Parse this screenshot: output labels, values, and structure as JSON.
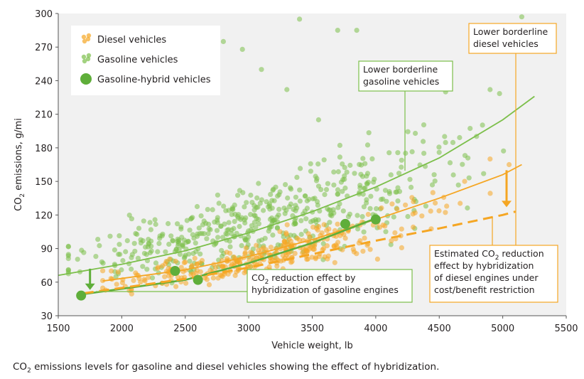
{
  "chart_data": {
    "type": "scatter",
    "xlabel": "Vehicle weight, lb",
    "ylabel": "CO2 emissions, g/mi",
    "xlim": [
      1500,
      5500
    ],
    "ylim": [
      30,
      300
    ],
    "x_ticks": [
      1500,
      2000,
      2500,
      3000,
      3500,
      4000,
      4500,
      5000,
      5500
    ],
    "y_ticks": [
      30,
      60,
      90,
      120,
      150,
      180,
      210,
      240,
      270,
      300
    ],
    "grid": false,
    "legend_position": "top-left",
    "legend": [
      {
        "label": "Diesel vehicles",
        "color": "#f5a623",
        "marker": "small-dot"
      },
      {
        "label": "Gasoline vehicles",
        "color": "#7cbf4a",
        "marker": "small-dot"
      },
      {
        "label": "Gasoline-hybrid vehicles",
        "color": "#5fae3a",
        "marker": "large-dot"
      }
    ],
    "series": [
      {
        "name": "Gasoline-hybrid vehicles",
        "x": [
          1680,
          2420,
          2600,
          3760,
          4000
        ],
        "y": [
          48,
          70,
          62,
          112,
          116
        ]
      }
    ],
    "scatter_clouds": [
      {
        "name": "Gasoline vehicles",
        "color": "#7cbf4a",
        "band": {
          "x": [
            1580,
            5300
          ],
          "y_center": [
            82,
            205
          ],
          "spread": [
            18,
            45
          ]
        },
        "outliers": [
          [
            2800,
            275
          ],
          [
            2950,
            268
          ],
          [
            3100,
            250
          ],
          [
            3400,
            295
          ],
          [
            3700,
            285
          ],
          [
            3850,
            285
          ],
          [
            4550,
            230
          ],
          [
            4900,
            232
          ],
          [
            5150,
            297
          ],
          [
            3300,
            232
          ],
          [
            2700,
            270
          ],
          [
            3550,
            205
          ]
        ]
      },
      {
        "name": "Diesel vehicles",
        "color": "#f5a623",
        "band": {
          "x": [
            1850,
            5100
          ],
          "y_center": [
            62,
            150
          ],
          "spread": [
            8,
            22
          ]
        },
        "outliers": [
          [
            4900,
            170
          ],
          [
            5050,
            165
          ],
          [
            4450,
            140
          ],
          [
            4700,
            150
          ]
        ]
      }
    ],
    "curves": [
      {
        "name": "Lower borderline gasoline vehicles",
        "color": "#7cbf4a",
        "style": "solid",
        "x": [
          1500,
          2000,
          2500,
          3000,
          3500,
          4000,
          4500,
          5000,
          5250
        ],
        "y": [
          66,
          76,
          88,
          104,
          123,
          145,
          171,
          205,
          226
        ]
      },
      {
        "name": "Lower borderline diesel vehicles",
        "color": "#f5a623",
        "style": "solid",
        "x": [
          1850,
          2500,
          3000,
          3500,
          4000,
          4500,
          5000,
          5150
        ],
        "y": [
          61,
          71,
          83,
          98,
          116,
          135,
          156,
          165
        ]
      },
      {
        "name": "Gasoline hybrid trend",
        "color": "#5fae3a",
        "style": "solid",
        "x": [
          1680,
          2000,
          2500,
          3000,
          3500,
          4000
        ],
        "y": [
          49,
          54,
          62,
          77,
          95,
          117
        ]
      },
      {
        "name": "Estimated diesel hybrid",
        "color": "#f5a623",
        "style": "dashed",
        "x": [
          1700,
          2500,
          3000,
          3500,
          4000,
          4500,
          5000,
          5100
        ],
        "y": [
          50,
          63,
          73,
          85,
          97,
          108,
          120,
          123
        ]
      }
    ],
    "arrows": [
      {
        "color": "#5fae3a",
        "x": 1750,
        "y_from": 72,
        "y_to": 53
      },
      {
        "color": "#f5a623",
        "x": 5030,
        "y_from": 160,
        "y_to": 127
      }
    ],
    "annotations": [
      {
        "id": "gas-border",
        "lines": [
          "Lower borderline",
          "gasoline vehicles"
        ],
        "border": "#7cbf4a"
      },
      {
        "id": "diesel-border",
        "lines": [
          "Lower borderline",
          "diesel vehicles"
        ],
        "border": "#f5a623"
      },
      {
        "id": "gas-hybrid",
        "lines": [
          "CO2 reduction effect by",
          "hybridization of gasoline engines"
        ],
        "border": "#7cbf4a"
      },
      {
        "id": "diesel-hybrid",
        "lines": [
          "Estimated CO2 reduction",
          "effect by hybridization",
          "of diesel engines under",
          "cost/benefit restriction"
        ],
        "border": "#f5a623"
      }
    ]
  },
  "caption": "CO2 emissions levels for gasoline and diesel vehicles showing the effect of hybridization."
}
